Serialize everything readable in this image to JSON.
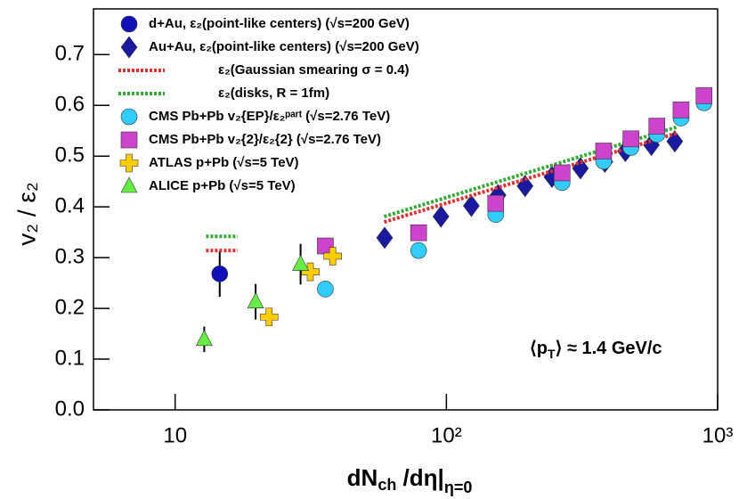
{
  "chart_data": {
    "type": "scatter",
    "y_label": "v₂ / ε₂",
    "x_label": {
      "main": "dN",
      "sub": "ch",
      "mid": " /dη|",
      "sub2": "η=0"
    },
    "annotation": {
      "a": "⟨p",
      "sub": "T",
      "b": "⟩ ≈ 1.4 GeV/c"
    },
    "xscale": "log",
    "xlim": [
      5,
      1000
    ],
    "xticks": [
      10,
      {
        "value": 100,
        "label": "10²"
      },
      {
        "value": 1000,
        "label": "10³"
      }
    ],
    "ylim": [
      0,
      0.79
    ],
    "yticks": [
      {
        "value": 0,
        "label": "0.0"
      },
      0.1,
      0.2,
      0.3,
      0.4,
      0.5,
      0.6,
      0.7
    ],
    "legend": "upper left",
    "series": [
      {
        "name": "d+Au, ε₂(point-like centers) (√s=200 GeV)",
        "color": "#1010b8",
        "marker": "circle",
        "x": [
          14.6
        ],
        "values": [
          0.268
        ],
        "errors": [
          0.045
        ]
      },
      {
        "name": "Au+Au, ε₂(point-like centers) (√s=200 GeV)",
        "color": "#1a1aa0",
        "marker": "diamond",
        "x": [
          59.2,
          95.5,
          123.6,
          155,
          195,
          245,
          312,
          384,
          457,
          570,
          695
        ],
        "values": [
          0.339,
          0.381,
          0.402,
          0.423,
          0.441,
          0.459,
          0.476,
          0.489,
          0.51,
          0.522,
          0.529
        ]
      },
      {
        "name": "ε₂(Gaussian smearing σ = 0.4)",
        "color": "#e03030",
        "line": "dotted",
        "x": [
          13,
          17,
          30,
          59,
          705
        ],
        "values": [
          0.314,
          0.314,
          null,
          0.37,
          0.545
        ]
      },
      {
        "name": "ε₂(disks, R = 1fm)",
        "color": "#33aa33",
        "line": "dotted",
        "x": [
          13,
          17,
          30,
          59,
          705
        ],
        "values": [
          0.342,
          0.342,
          null,
          0.381,
          0.557
        ]
      },
      {
        "name": "CMS Pb+Pb v₂{EP}/ε₂ᵖᵃʳᵗ (√s=2.76 TeV)",
        "color": "#33ccff",
        "marker": "circle",
        "x": [
          35.8,
          79,
          152,
          267,
          380,
          479,
          597,
          733,
          891
        ],
        "values": [
          0.238,
          0.314,
          0.385,
          0.448,
          0.49,
          0.517,
          0.543,
          0.575,
          0.605
        ]
      },
      {
        "name": "CMS Pb+Pb v₂{2}/ε₂{2} (√s=2.76 TeV)",
        "color": "#cc44cc",
        "marker": "square",
        "x": [
          35.8,
          79,
          152,
          267,
          380,
          479,
          597,
          733,
          891
        ],
        "values": [
          0.323,
          0.349,
          0.407,
          0.467,
          0.51,
          0.534,
          0.559,
          0.591,
          0.619
        ]
      },
      {
        "name": "ATLAS p+Pb (√s=5 TeV)",
        "color": "#ffcc00",
        "marker": "cross",
        "x": [
          22.2,
          31.5,
          38.1
        ],
        "values": [
          0.183,
          0.272,
          0.303
        ]
      },
      {
        "name": "ALICE p+Pb (√s=5 TeV)",
        "color": "#66ee44",
        "marker": "triangle",
        "x": [
          12.8,
          19.8,
          29.0
        ],
        "values": [
          0.139,
          0.213,
          0.287
        ],
        "errors": [
          0.025,
          0.035,
          0.04
        ]
      }
    ]
  }
}
